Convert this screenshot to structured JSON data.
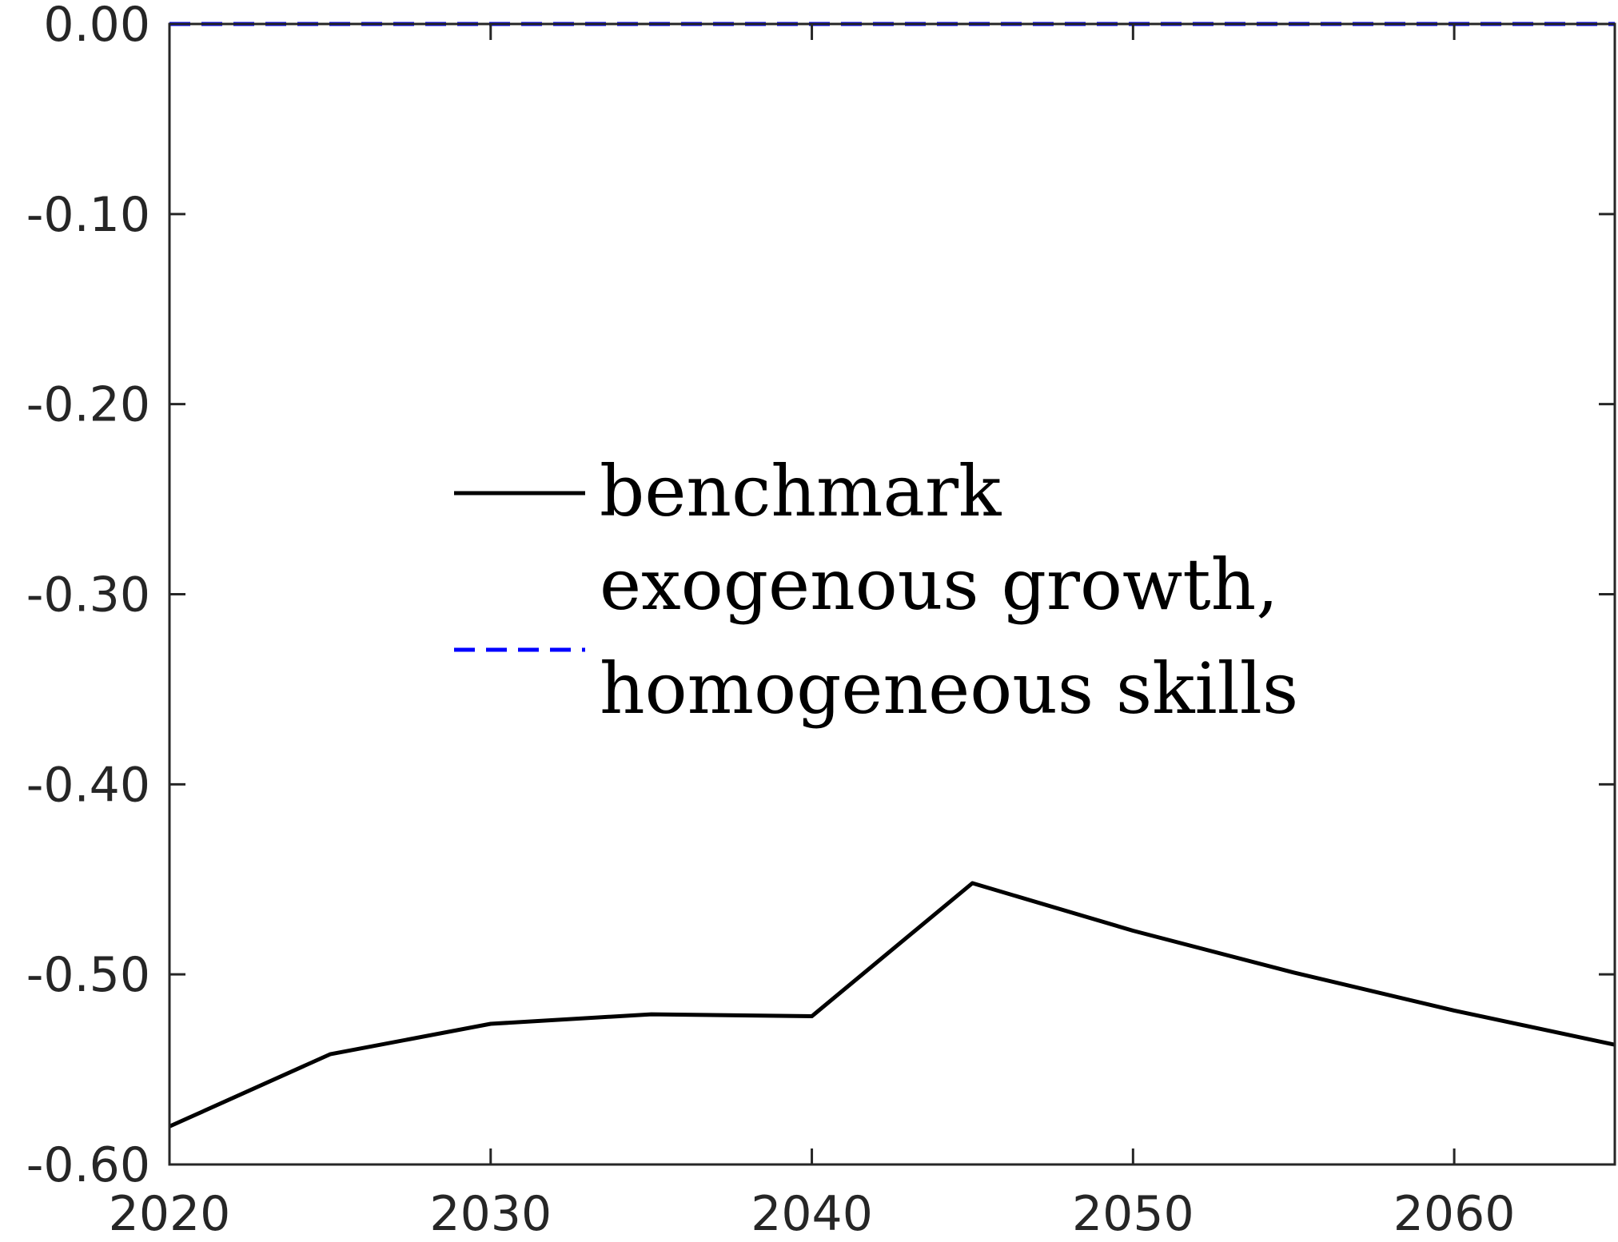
{
  "chart_data": {
    "type": "line",
    "title": "",
    "xlabel": "",
    "ylabel": "",
    "xlim": [
      2020,
      2065
    ],
    "ylim": [
      -0.6,
      0.0
    ],
    "x_ticks": [
      2020,
      2030,
      2040,
      2050,
      2060
    ],
    "x_tick_labels": [
      "2020",
      "2030",
      "2040",
      "2050",
      "2060"
    ],
    "y_ticks": [
      0.0,
      -0.1,
      -0.2,
      -0.3,
      -0.4,
      -0.5,
      -0.6
    ],
    "y_tick_labels": [
      "0.00",
      "-0.10",
      "-0.20",
      "-0.30",
      "-0.40",
      "-0.50",
      "-0.60"
    ],
    "grid": false,
    "legend_position": "center",
    "series": [
      {
        "name": "benchmark",
        "color": "#000000",
        "line_style": "solid",
        "x": [
          2020,
          2025,
          2030,
          2035,
          2040,
          2045,
          2050,
          2055,
          2060,
          2065
        ],
        "y": [
          -0.58,
          -0.542,
          -0.526,
          -0.521,
          -0.522,
          -0.452,
          -0.477,
          -0.499,
          -0.519,
          -0.537
        ]
      },
      {
        "name_lines": [
          "exogenous growth,",
          "homogeneous skills"
        ],
        "color": "#0000ff",
        "line_style": "dashed",
        "x": [
          2020,
          2025,
          2030,
          2035,
          2040,
          2045,
          2050,
          2055,
          2060,
          2065
        ],
        "y": [
          0,
          0,
          0,
          0,
          0,
          0,
          0,
          0,
          0,
          0
        ]
      }
    ]
  }
}
